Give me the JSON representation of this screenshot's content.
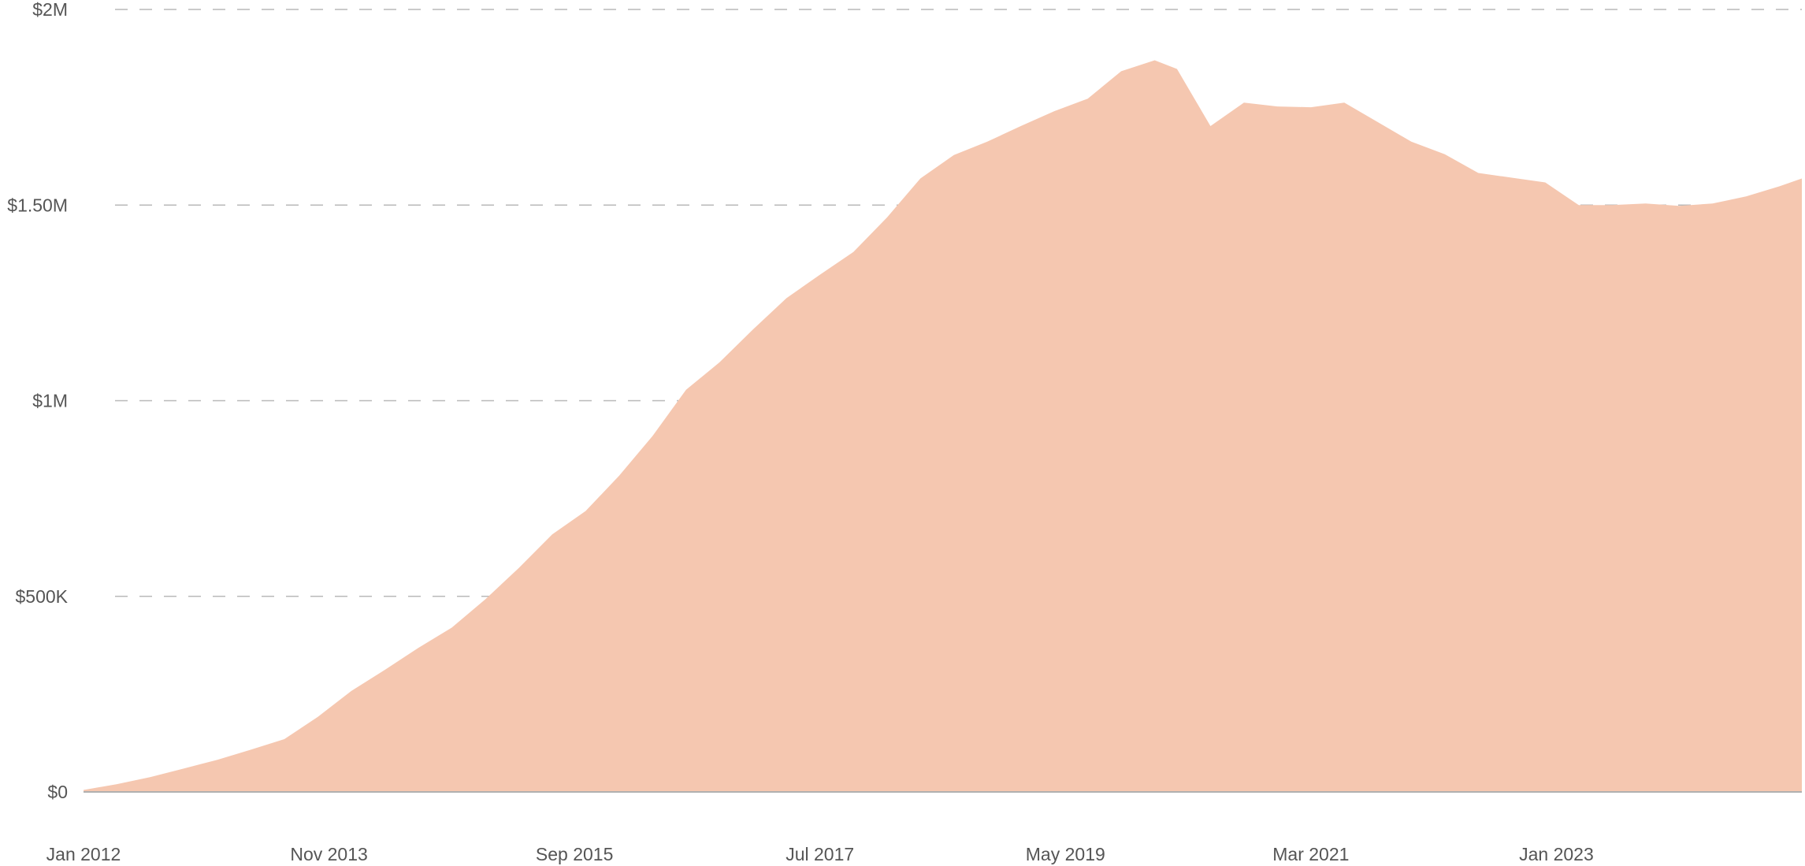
{
  "chart_data": {
    "type": "area",
    "title": "",
    "xlabel": "",
    "ylabel": "",
    "grid": true,
    "legend": "none",
    "color": "#f5c7b0",
    "ylim": [
      0,
      2000000
    ],
    "yticks": [
      {
        "value": 0,
        "label": "$0"
      },
      {
        "value": 500000,
        "label": "$500K"
      },
      {
        "value": 1000000,
        "label": "$1M"
      },
      {
        "value": 1500000,
        "label": "$1.50M"
      },
      {
        "value": 2000000,
        "label": "$2M"
      }
    ],
    "xlim": [
      "2012-01",
      "2024-11"
    ],
    "xticks": [
      {
        "value": "2012-01",
        "label": "Jan 2012"
      },
      {
        "value": "2013-11",
        "label": "Nov 2013"
      },
      {
        "value": "2015-09",
        "label": "Sep 2015"
      },
      {
        "value": "2017-07",
        "label": "Jul 2017"
      },
      {
        "value": "2019-05",
        "label": "May 2019"
      },
      {
        "value": "2021-03",
        "label": "Mar 2021"
      },
      {
        "value": "2023-01",
        "label": "Jan 2023"
      }
    ],
    "series": [
      {
        "x": [
          "2012-01",
          "2012-04",
          "2012-07",
          "2012-10",
          "2013-01",
          "2013-04",
          "2013-07",
          "2013-10",
          "2014-01",
          "2014-04",
          "2014-07",
          "2014-10",
          "2015-01",
          "2015-04",
          "2015-07",
          "2015-10",
          "2016-01",
          "2016-04",
          "2016-07",
          "2016-10",
          "2017-01",
          "2017-04",
          "2017-07",
          "2017-10",
          "2018-01",
          "2018-04",
          "2018-07",
          "2018-10",
          "2019-01",
          "2019-04",
          "2019-07",
          "2019-10",
          "2020-01",
          "2020-03",
          "2020-06",
          "2020-09",
          "2020-12",
          "2021-03",
          "2021-06",
          "2021-09",
          "2021-12",
          "2022-03",
          "2022-06",
          "2022-09",
          "2022-12",
          "2023-03",
          "2023-06",
          "2023-09",
          "2023-12",
          "2024-03",
          "2024-06",
          "2024-09",
          "2024-11"
        ],
        "values": [
          5000,
          20000,
          38000,
          60000,
          82000,
          108000,
          135000,
          192000,
          258000,
          312000,
          368000,
          420000,
          492000,
          572000,
          658000,
          718000,
          808000,
          910000,
          1028000,
          1098000,
          1182000,
          1262000,
          1322000,
          1380000,
          1468000,
          1568000,
          1628000,
          1662000,
          1702000,
          1740000,
          1772000,
          1842000,
          1870000,
          1848000,
          1702000,
          1762000,
          1752000,
          1750000,
          1762000,
          1712000,
          1662000,
          1630000,
          1582000,
          1570000,
          1558000,
          1500000,
          1500000,
          1504000,
          1498000,
          1504000,
          1522000,
          1548000,
          1568000
        ]
      }
    ]
  }
}
